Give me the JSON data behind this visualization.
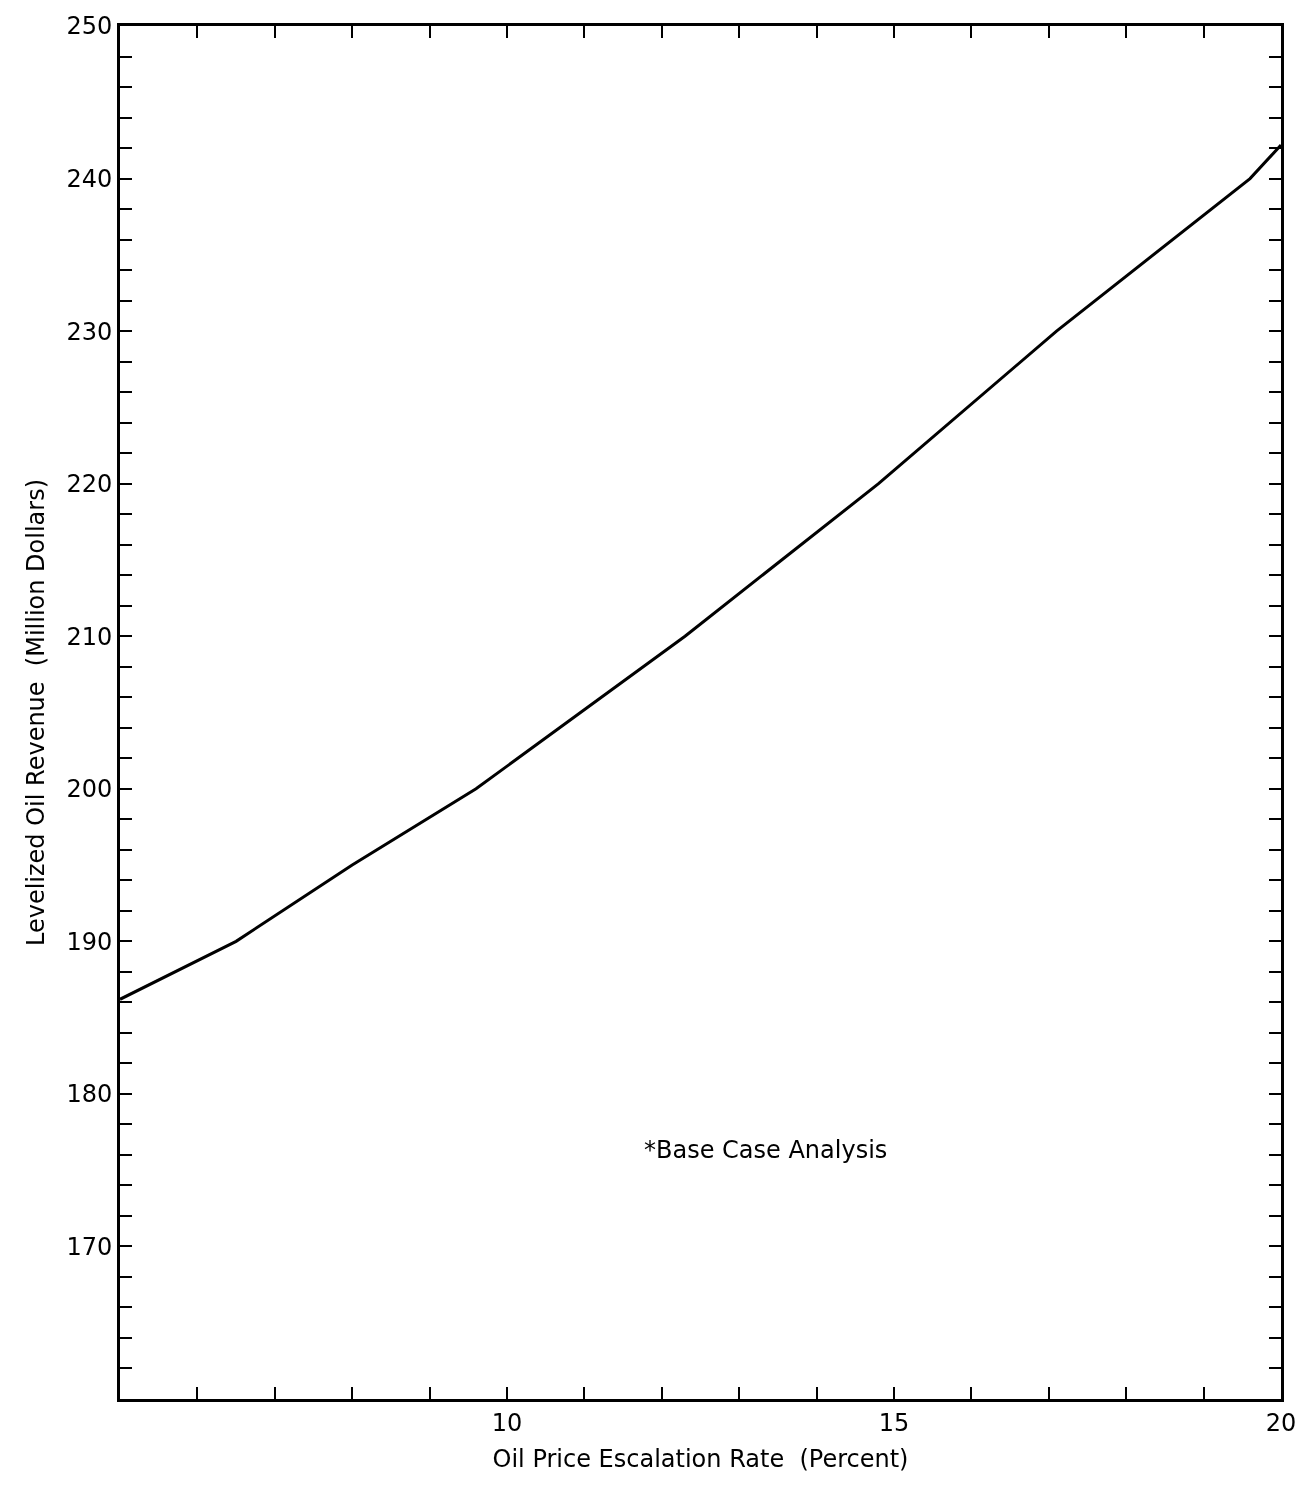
{
  "chart_data": {
    "type": "line",
    "xlabel": "Oil Price Escalation Rate  (Percent)",
    "ylabel": "Levelized Oil Revenue  (Million Dollars)",
    "annotations": [
      "*Base Case Analysis"
    ],
    "x": [
      5,
      6.5,
      8,
      9.6,
      12.3,
      14.8,
      17.1,
      19.6,
      20
    ],
    "series": [
      {
        "color": "#000000",
        "values": [
          186.2,
          190,
          195,
          200,
          210,
          220,
          230,
          240,
          242.2
        ]
      }
    ],
    "xlim": [
      5,
      20
    ],
    "xticks": [
      {
        "value": 6,
        "label": null
      },
      {
        "value": 7,
        "label": null
      },
      {
        "value": 8,
        "label": null
      },
      {
        "value": 9,
        "label": null
      },
      10,
      {
        "value": 11,
        "label": null
      },
      {
        "value": 12,
        "label": null
      },
      {
        "value": 13,
        "label": null
      },
      {
        "value": 14,
        "label": null
      },
      15,
      {
        "value": 16,
        "label": null
      },
      {
        "value": 17,
        "label": null
      },
      {
        "value": 18,
        "label": null
      },
      {
        "value": 19,
        "label": null
      },
      20
    ],
    "ylim": [
      160,
      250
    ],
    "yticks": [
      {
        "value": 162,
        "label": null
      },
      {
        "value": 164,
        "label": null
      },
      {
        "value": 166,
        "label": null
      },
      {
        "value": 168,
        "label": null
      },
      170,
      {
        "value": 172,
        "label": null
      },
      {
        "value": 174,
        "label": null
      },
      {
        "value": 176,
        "label": null
      },
      {
        "value": 178,
        "label": null
      },
      180,
      {
        "value": 182,
        "label": null
      },
      {
        "value": 184,
        "label": null
      },
      {
        "value": 186,
        "label": null
      },
      {
        "value": 188,
        "label": null
      },
      190,
      {
        "value": 192,
        "label": null
      },
      {
        "value": 194,
        "label": null
      },
      {
        "value": 196,
        "label": null
      },
      {
        "value": 198,
        "label": null
      },
      200,
      {
        "value": 202,
        "label": null
      },
      {
        "value": 204,
        "label": null
      },
      {
        "value": 206,
        "label": null
      },
      {
        "value": 208,
        "label": null
      },
      210,
      {
        "value": 212,
        "label": null
      },
      {
        "value": 214,
        "label": null
      },
      {
        "value": 216,
        "label": null
      },
      {
        "value": 218,
        "label": null
      },
      220,
      {
        "value": 222,
        "label": null
      },
      {
        "value": 224,
        "label": null
      },
      {
        "value": 226,
        "label": null
      },
      {
        "value": 228,
        "label": null
      },
      230,
      {
        "value": 232,
        "label": null
      },
      {
        "value": 234,
        "label": null
      },
      {
        "value": 236,
        "label": null
      },
      {
        "value": 238,
        "label": null
      },
      240,
      {
        "value": 242,
        "label": null
      },
      {
        "value": 244,
        "label": null
      },
      {
        "value": 246,
        "label": null
      },
      {
        "value": 248,
        "label": null
      },
      250
    ],
    "legend": false,
    "marker": "none",
    "line_style": "solid"
  }
}
